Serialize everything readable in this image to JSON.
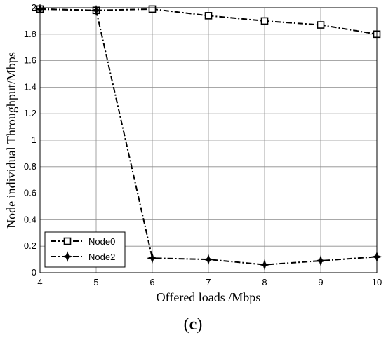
{
  "chart_data": {
    "type": "line",
    "title": "",
    "xlabel": "Offered loads /Mbps",
    "ylabel": "Node individual Throughput/Mbps",
    "panel_label_open": "(",
    "panel_label_letter": "c",
    "panel_label_close": ")",
    "xlim": [
      4,
      10
    ],
    "ylim": [
      0,
      2
    ],
    "xticks": [
      4,
      5,
      6,
      7,
      8,
      9,
      10
    ],
    "yticks": [
      0,
      0.2,
      0.4,
      0.6,
      0.8,
      1,
      1.2,
      1.4,
      1.6,
      1.8,
      2
    ],
    "grid": true,
    "legend_position": "bottom-left",
    "x": [
      4,
      5,
      6,
      7,
      8,
      9,
      10
    ],
    "series": [
      {
        "name": "Node0",
        "marker": "square-open",
        "line_style": "dash-dot",
        "color": "#000000",
        "values": [
          1.99,
          1.98,
          1.99,
          1.94,
          1.9,
          1.87,
          1.8
        ]
      },
      {
        "name": "Node2",
        "marker": "star-filled",
        "line_style": "dash-dot",
        "color": "#000000",
        "values": [
          1.99,
          1.98,
          0.11,
          0.1,
          0.06,
          0.09,
          0.12
        ]
      }
    ]
  }
}
